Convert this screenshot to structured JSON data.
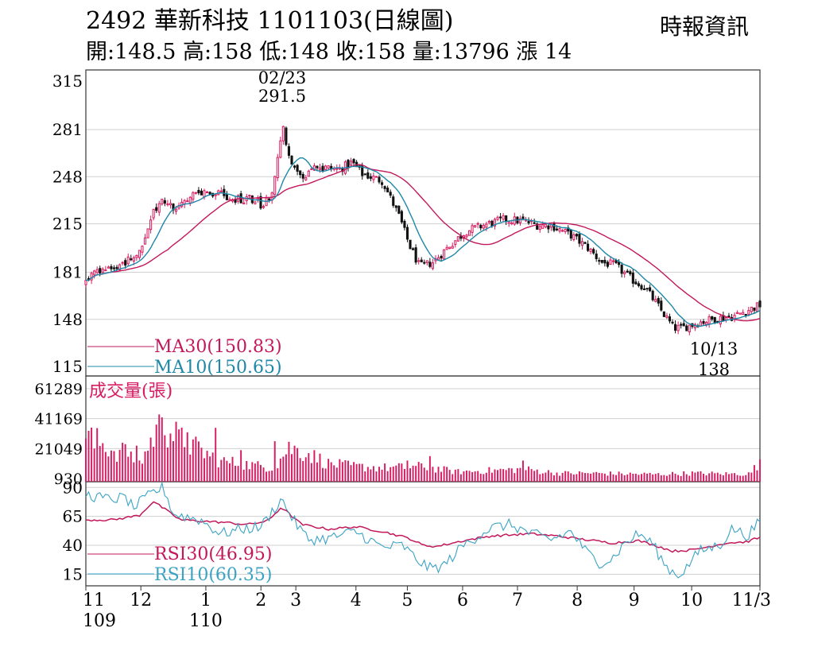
{
  "header": {
    "code": "2492",
    "name": "華新科技",
    "date_label": "1101103(日線圖)",
    "source": "時報資訊",
    "ohlc": [
      {
        "label": "開:",
        "value": "148.5"
      },
      {
        "label": "高:",
        "value": "158"
      },
      {
        "label": "低:",
        "value": "148"
      },
      {
        "label": "收:",
        "value": "158"
      },
      {
        "label": "量:",
        "value": "13796"
      },
      {
        "label": "漲",
        "value": "14"
      }
    ]
  },
  "colors": {
    "up": "#d81b60",
    "down": "#111111",
    "ma30": "#c2185b",
    "ma10": "#1e88a8",
    "volume": "#d81b60",
    "rsi30": "#c2185b",
    "rsi10": "#3ba3c4",
    "grid": "#d0d0d0",
    "frame": "#333333"
  },
  "chart_data": [
    {
      "type": "candlestick",
      "title": "2492 華新科技 1101103(日線圖)",
      "ylim": [
        115,
        315
      ],
      "yticks": [
        315,
        281,
        248,
        215,
        181,
        148,
        115
      ],
      "grid": true,
      "x_months": [
        {
          "label": "11",
          "year": "109",
          "pos": 0.0
        },
        {
          "label": "12",
          "pos": 0.0816
        },
        {
          "label": "1",
          "year": "110",
          "pos": 0.178
        },
        {
          "label": "2",
          "pos": 0.2597
        },
        {
          "label": "3",
          "pos": 0.3115
        },
        {
          "label": "4",
          "pos": 0.4007
        },
        {
          "label": "5",
          "pos": 0.4769
        },
        {
          "label": "6",
          "pos": 0.5589
        },
        {
          "label": "7",
          "pos": 0.6403
        },
        {
          "label": "8",
          "pos": 0.7289
        },
        {
          "label": "9",
          "pos": 0.8133
        },
        {
          "label": "10",
          "pos": 0.8987
        },
        {
          "label": "11/3",
          "pos": 1.0
        }
      ],
      "keypoints": [
        [
          0,
          173
        ],
        [
          0.006,
          180
        ],
        [
          0.02,
          180
        ],
        [
          0.04,
          185
        ],
        [
          0.06,
          188
        ],
        [
          0.075,
          192
        ],
        [
          0.09,
          205
        ],
        [
          0.1,
          225
        ],
        [
          0.115,
          232
        ],
        [
          0.13,
          224
        ],
        [
          0.16,
          238
        ],
        [
          0.2,
          237
        ],
        [
          0.22,
          232
        ],
        [
          0.25,
          232
        ],
        [
          0.26,
          228
        ],
        [
          0.275,
          235
        ],
        [
          0.285,
          262
        ],
        [
          0.292,
          285
        ],
        [
          0.3,
          264
        ],
        [
          0.32,
          248
        ],
        [
          0.345,
          255
        ],
        [
          0.375,
          253
        ],
        [
          0.395,
          258
        ],
        [
          0.41,
          250
        ],
        [
          0.44,
          245
        ],
        [
          0.465,
          220
        ],
        [
          0.48,
          200
        ],
        [
          0.495,
          185
        ],
        [
          0.515,
          188
        ],
        [
          0.54,
          200
        ],
        [
          0.565,
          210
        ],
        [
          0.59,
          214
        ],
        [
          0.62,
          218
        ],
        [
          0.65,
          217
        ],
        [
          0.67,
          214
        ],
        [
          0.69,
          214
        ],
        [
          0.72,
          207
        ],
        [
          0.745,
          198
        ],
        [
          0.765,
          188
        ],
        [
          0.785,
          186
        ],
        [
          0.81,
          176
        ],
        [
          0.83,
          170
        ],
        [
          0.86,
          150
        ],
        [
          0.872,
          142
        ],
        [
          0.885,
          142
        ],
        [
          0.91,
          146
        ],
        [
          0.94,
          149
        ],
        [
          0.96,
          150
        ],
        [
          1.0,
          158
        ]
      ],
      "annotations": [
        {
          "date": "02/23",
          "value": "291.5",
          "kind": "high"
        },
        {
          "date": "10/13",
          "value": "138",
          "kind": "low"
        }
      ],
      "legend": [
        {
          "label": "MA30(150.83)",
          "series": "ma30"
        },
        {
          "label": "MA10(150.65)",
          "series": "ma10"
        }
      ]
    },
    {
      "type": "bar",
      "title": "成交量(張)",
      "ylim": [
        930,
        61289
      ],
      "yticks": [
        61289,
        41169,
        21049,
        930
      ],
      "grid": true,
      "volume_profile": [
        [
          0,
          33000
        ],
        [
          0.08,
          12000
        ],
        [
          0.11,
          42000
        ],
        [
          0.14,
          30000
        ],
        [
          0.2,
          14000
        ],
        [
          0.28,
          9000
        ],
        [
          0.3,
          24000
        ],
        [
          0.33,
          20000
        ],
        [
          0.36,
          12000
        ],
        [
          0.4,
          10000
        ],
        [
          0.45,
          9000
        ],
        [
          0.5,
          10000
        ],
        [
          0.55,
          6000
        ],
        [
          0.6,
          7000
        ],
        [
          0.65,
          8000
        ],
        [
          0.7,
          5000
        ],
        [
          0.75,
          5000
        ],
        [
          0.8,
          4500
        ],
        [
          0.85,
          4200
        ],
        [
          0.9,
          5000
        ],
        [
          0.95,
          4500
        ],
        [
          0.985,
          4500
        ],
        [
          1.0,
          13796
        ]
      ],
      "spikes": [
        {
          "pos": 0.004,
          "value": 33000
        },
        {
          "pos": 0.012,
          "value": 21000
        },
        {
          "pos": 0.054,
          "value": 25000
        },
        {
          "pos": 0.06,
          "value": 24000
        },
        {
          "pos": 0.075,
          "value": 23000
        },
        {
          "pos": 0.109,
          "value": 44000
        },
        {
          "pos": 0.114,
          "value": 42000
        },
        {
          "pos": 0.119,
          "value": 30000
        },
        {
          "pos": 0.15,
          "value": 32000
        },
        {
          "pos": 0.192,
          "value": 35000
        },
        {
          "pos": 0.232,
          "value": 20000
        },
        {
          "pos": 0.281,
          "value": 26000
        },
        {
          "pos": 0.34,
          "value": 20000
        },
        {
          "pos": 0.478,
          "value": 13000
        },
        {
          "pos": 0.512,
          "value": 16000
        },
        {
          "pos": 0.647,
          "value": 13000
        },
        {
          "pos": 0.999,
          "value": 13796
        }
      ]
    },
    {
      "type": "line",
      "title": "RSI",
      "ylim": [
        5,
        95
      ],
      "yticks": [
        90,
        65,
        40,
        15
      ],
      "grid": true,
      "legend": [
        {
          "label": "RSI30(46.95)",
          "series": "rsi30"
        },
        {
          "label": "RSI10(60.35)",
          "series": "rsi10"
        }
      ],
      "series": [
        {
          "name": "RSI30",
          "points": [
            [
              0,
              62
            ],
            [
              0.04,
              62
            ],
            [
              0.08,
              66
            ],
            [
              0.1,
              78
            ],
            [
              0.115,
              72
            ],
            [
              0.14,
              62
            ],
            [
              0.2,
              60
            ],
            [
              0.24,
              58
            ],
            [
              0.27,
              61
            ],
            [
              0.29,
              73
            ],
            [
              0.32,
              58
            ],
            [
              0.36,
              54
            ],
            [
              0.4,
              56
            ],
            [
              0.44,
              52
            ],
            [
              0.48,
              46
            ],
            [
              0.5,
              40
            ],
            [
              0.52,
              39
            ],
            [
              0.56,
              44
            ],
            [
              0.6,
              48
            ],
            [
              0.66,
              50
            ],
            [
              0.7,
              48
            ],
            [
              0.74,
              45
            ],
            [
              0.78,
              42
            ],
            [
              0.82,
              44
            ],
            [
              0.85,
              39
            ],
            [
              0.87,
              35
            ],
            [
              0.9,
              36
            ],
            [
              0.95,
              42
            ],
            [
              0.98,
              43
            ],
            [
              1.0,
              46.95
            ]
          ]
        },
        {
          "name": "RSI10",
          "points": [
            [
              0,
              84
            ],
            [
              0.03,
              80
            ],
            [
              0.06,
              81
            ],
            [
              0.07,
              72
            ],
            [
              0.1,
              86
            ],
            [
              0.115,
              90
            ],
            [
              0.13,
              67
            ],
            [
              0.17,
              62
            ],
            [
              0.2,
              50
            ],
            [
              0.23,
              54
            ],
            [
              0.26,
              56
            ],
            [
              0.29,
              80
            ],
            [
              0.31,
              60
            ],
            [
              0.33,
              45
            ],
            [
              0.36,
              46
            ],
            [
              0.4,
              52
            ],
            [
              0.44,
              38
            ],
            [
              0.47,
              40
            ],
            [
              0.49,
              28
            ],
            [
              0.51,
              20
            ],
            [
              0.53,
              22
            ],
            [
              0.56,
              40
            ],
            [
              0.6,
              55
            ],
            [
              0.63,
              58
            ],
            [
              0.66,
              50
            ],
            [
              0.69,
              45
            ],
            [
              0.72,
              52
            ],
            [
              0.74,
              36
            ],
            [
              0.76,
              25
            ],
            [
              0.78,
              28
            ],
            [
              0.8,
              42
            ],
            [
              0.82,
              50
            ],
            [
              0.84,
              42
            ],
            [
              0.86,
              22
            ],
            [
              0.878,
              14
            ],
            [
              0.89,
              20
            ],
            [
              0.91,
              35
            ],
            [
              0.94,
              40
            ],
            [
              0.96,
              55
            ],
            [
              0.98,
              48
            ],
            [
              1.0,
              60.35
            ]
          ]
        }
      ]
    }
  ]
}
